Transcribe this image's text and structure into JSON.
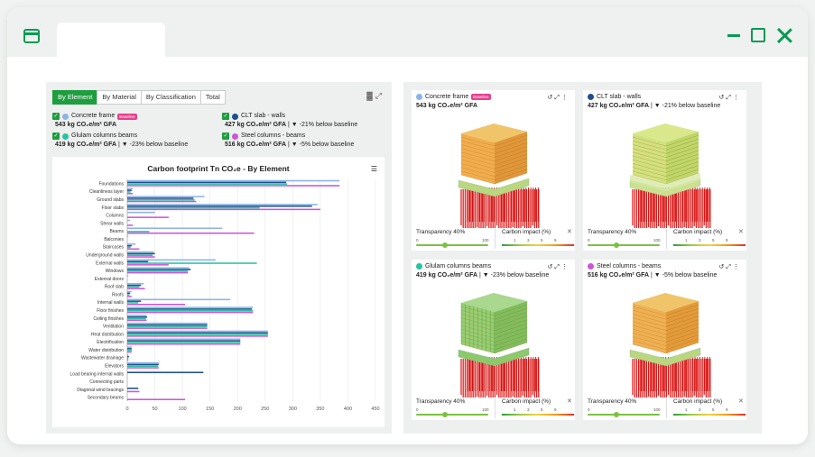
{
  "left": {
    "tabs": [
      "By Element",
      "By Material",
      "By Classification",
      "Total"
    ],
    "active_tab": 0,
    "legend": [
      {
        "name": "Concrete frame",
        "color": "#8ab4e8",
        "badge": "Baseline",
        "value_main": "543 kg CO₂e/m² GFA",
        "value_sub": ""
      },
      {
        "name": "CLT slab - walls",
        "color": "#1e4f8a",
        "badge": "",
        "value_main": "427 kg CO₂e/m² GFA",
        "value_sub": " | ▼ -21% below baseline"
      },
      {
        "name": "Glulam columns beams",
        "color": "#25c4a0",
        "badge": "",
        "value_main": "419 kg CO₂e/m² GFA",
        "value_sub": " | ▼ -23% below baseline"
      },
      {
        "name": "Steel columns - beams",
        "color": "#cc55d8",
        "badge": "",
        "value_main": "516 kg CO₂e/m² GFA",
        "value_sub": " | ▼ -5% below baseline"
      }
    ]
  },
  "chart_data": {
    "type": "bar",
    "orientation": "horizontal",
    "title": "Carbon footprint Tn CO₂e - By Element",
    "categories": [
      "Foundations",
      "Cleanliness layer",
      "Ground slabs",
      "Floor slabs",
      "Columns",
      "Shear walls",
      "Beams",
      "Balconies",
      "Staircases",
      "Underground walls",
      "External walls",
      "Windows",
      "External doors",
      "Roof slab",
      "Roofs",
      "Internal walls",
      "Floor finishes",
      "Ceiling finishes",
      "Ventilation",
      "Heat distribution",
      "Electrification",
      "Water distribution",
      "Wastewater drainage",
      "Elevators",
      "Load bearing internal walls",
      "Connecting parts",
      "Diagonal wind bracings",
      "Secondary beams"
    ],
    "series": [
      {
        "name": "Concrete frame",
        "color": "#8ab4e8",
        "values": [
          385,
          10,
          140,
          345,
          50,
          5,
          172,
          2,
          15,
          48,
          160,
          112,
          2,
          30,
          8,
          187,
          228,
          35,
          145,
          255,
          205,
          8,
          2,
          58,
          0,
          0,
          0,
          0
        ]
      },
      {
        "name": "CLT slab - walls",
        "color": "#1e4f8a",
        "values": [
          288,
          8,
          120,
          335,
          0,
          0,
          0,
          0,
          8,
          50,
          38,
          115,
          0,
          25,
          5,
          25,
          226,
          36,
          145,
          255,
          205,
          8,
          3,
          57,
          138,
          0,
          20,
          0
        ]
      },
      {
        "name": "Glulam columns beams",
        "color": "#25c4a0",
        "values": [
          290,
          6,
          122,
          240,
          0,
          0,
          40,
          0,
          6,
          46,
          235,
          110,
          0,
          22,
          4,
          20,
          228,
          34,
          145,
          255,
          205,
          8,
          2,
          56,
          0,
          0,
          0,
          0
        ]
      },
      {
        "name": "Steel columns - beams",
        "color": "#cc55d8",
        "values": [
          385,
          10,
          125,
          350,
          75,
          10,
          230,
          0,
          22,
          50,
          75,
          110,
          0,
          32,
          8,
          105,
          228,
          35,
          145,
          255,
          205,
          8,
          2,
          57,
          0,
          0,
          22,
          105
        ]
      }
    ],
    "xticks": [
      0,
      50,
      100,
      150,
      200,
      250,
      300,
      350,
      400,
      450
    ],
    "xlim": [
      0,
      450
    ]
  },
  "cards": [
    {
      "title": "Concrete frame",
      "color": "#8ab4e8",
      "badge": "Baseline",
      "value_main": "543 kg CO₂e/m² GFA",
      "value_sub": "",
      "variant": "concrete"
    },
    {
      "title": "CLT slab - walls",
      "color": "#1e4f8a",
      "badge": "",
      "value_main": "427 kg CO₂e/m² GFA",
      "value_sub": " | ▼ -21% below baseline",
      "variant": "clt"
    },
    {
      "title": "Glulam columns beams",
      "color": "#25c4a0",
      "badge": "",
      "value_main": "419 kg CO₂e/m² GFA",
      "value_sub": " | ▼ -23% below baseline",
      "variant": "glulam"
    },
    {
      "title": "Steel columns - beams",
      "color": "#cc55d8",
      "badge": "",
      "value_main": "516 kg CO₂e/m² GFA",
      "value_sub": " | ▼ -5% below baseline",
      "variant": "steel"
    }
  ],
  "controls": {
    "transparency_label": "Transparency 40%",
    "transparency_value": 0.4,
    "scale_min": "0",
    "scale_max": "100",
    "carbon_label": "Carbon impact (%)",
    "carbon_ticks": [
      "1",
      "3",
      "5",
      "9"
    ]
  }
}
